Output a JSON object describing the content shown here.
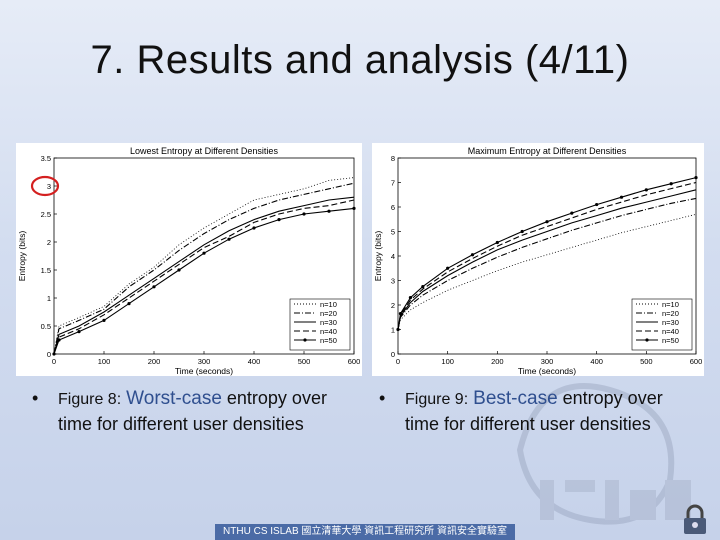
{
  "slide": {
    "title": "7. Results and analysis (4/11)",
    "footer": "NTHU CS ISLAB 國立清華大學 資訊工程研究所 資訊安全實驗室"
  },
  "captions": [
    {
      "bullet": "•",
      "prefix": "Figure 8:",
      "highlight": "Worst-case",
      "rest": " entropy over time for different user densities"
    },
    {
      "bullet": "•",
      "prefix": "Figure 9:",
      "highlight": "Best-case",
      "rest": "  entropy over time for  different user densities"
    }
  ],
  "colors": {
    "highlight_circle": "#d42020",
    "accent_text": "#2f4f8f",
    "footer_bg": "#4b6ba6"
  },
  "chart_data": [
    {
      "type": "line",
      "title": "Lowest Entropy at Different Densities",
      "xlabel": "Time (seconds)",
      "ylabel": "Entropy (bits)",
      "xlim": [
        0,
        600
      ],
      "ylim": [
        0,
        3.5
      ],
      "xticks": [
        0,
        100,
        200,
        300,
        400,
        500,
        600
      ],
      "yticks": [
        0,
        0.5,
        1,
        1.5,
        2,
        2.5,
        3,
        3.5
      ],
      "legend_position": "bottom-right",
      "annotation": "red circle around y-tick 3",
      "x": [
        0,
        10,
        50,
        100,
        150,
        200,
        250,
        300,
        350,
        400,
        450,
        500,
        550,
        600
      ],
      "series": [
        {
          "name": "n=10",
          "style": "dotted",
          "values": [
            0,
            0.5,
            0.65,
            0.85,
            1.25,
            1.55,
            1.95,
            2.25,
            2.5,
            2.75,
            2.85,
            2.95,
            3.1,
            3.15
          ]
        },
        {
          "name": "n=20",
          "style": "dashdot",
          "values": [
            0,
            0.45,
            0.6,
            0.8,
            1.2,
            1.5,
            1.85,
            2.15,
            2.4,
            2.6,
            2.75,
            2.85,
            2.95,
            3.05
          ]
        },
        {
          "name": "n=30",
          "style": "solid",
          "values": [
            0,
            0.35,
            0.5,
            0.75,
            1.05,
            1.35,
            1.65,
            1.95,
            2.2,
            2.4,
            2.55,
            2.65,
            2.75,
            2.8
          ]
        },
        {
          "name": "n=40",
          "style": "dashed",
          "values": [
            0,
            0.3,
            0.45,
            0.7,
            1.0,
            1.3,
            1.6,
            1.9,
            2.1,
            2.35,
            2.5,
            2.6,
            2.65,
            2.75
          ]
        },
        {
          "name": "n=50",
          "style": "solid-marker",
          "values": [
            0,
            0.25,
            0.4,
            0.6,
            0.9,
            1.2,
            1.5,
            1.8,
            2.05,
            2.25,
            2.4,
            2.5,
            2.55,
            2.6
          ]
        }
      ]
    },
    {
      "type": "line",
      "title": "Maximum Entropy at Different Densities",
      "xlabel": "Time (seconds)",
      "ylabel": "Entropy (bits)",
      "xlim": [
        0,
        600
      ],
      "ylim": [
        0,
        8
      ],
      "xticks": [
        0,
        100,
        200,
        300,
        400,
        500,
        600
      ],
      "yticks": [
        0,
        1,
        2,
        3,
        4,
        5,
        6,
        7,
        8
      ],
      "legend_position": "bottom-right",
      "x": [
        0,
        5,
        25,
        50,
        100,
        150,
        200,
        250,
        300,
        350,
        400,
        450,
        500,
        550,
        600
      ],
      "series": [
        {
          "name": "n=10",
          "style": "dotted",
          "values": [
            1.0,
            1.4,
            1.8,
            2.1,
            2.6,
            3.0,
            3.4,
            3.75,
            4.05,
            4.35,
            4.65,
            4.95,
            5.2,
            5.45,
            5.7
          ]
        },
        {
          "name": "n=20",
          "style": "dashdot",
          "values": [
            1.0,
            1.5,
            2.0,
            2.4,
            3.0,
            3.5,
            3.95,
            4.35,
            4.7,
            5.05,
            5.35,
            5.65,
            5.9,
            6.15,
            6.35
          ]
        },
        {
          "name": "n=30",
          "style": "solid",
          "values": [
            1.0,
            1.55,
            2.1,
            2.55,
            3.2,
            3.75,
            4.25,
            4.65,
            5.0,
            5.35,
            5.65,
            5.95,
            6.2,
            6.45,
            6.7
          ]
        },
        {
          "name": "n=40",
          "style": "dashed",
          "values": [
            1.0,
            1.6,
            2.2,
            2.65,
            3.35,
            3.9,
            4.4,
            4.85,
            5.2,
            5.55,
            5.9,
            6.2,
            6.5,
            6.75,
            7.0
          ]
        },
        {
          "name": "n=50",
          "style": "solid-marker",
          "values": [
            1.0,
            1.65,
            2.3,
            2.75,
            3.5,
            4.05,
            4.55,
            5.0,
            5.4,
            5.75,
            6.1,
            6.4,
            6.7,
            6.95,
            7.2
          ]
        }
      ]
    }
  ]
}
